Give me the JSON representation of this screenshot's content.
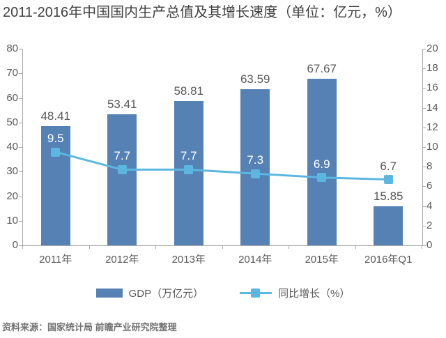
{
  "chart_data": {
    "type": "combo",
    "title": "2011-2016年中国国内生产总值及其增长速度（单位：亿元，%）",
    "categories": [
      "2011年",
      "2012年",
      "2013年",
      "2014年",
      "2015年",
      "2016年Q1"
    ],
    "series": [
      {
        "name": "GDP（万亿元）",
        "type": "bar",
        "axis": "left",
        "values": [
          48.41,
          53.41,
          58.81,
          63.59,
          67.67,
          15.85
        ]
      },
      {
        "name": "同比增长（%）",
        "type": "line",
        "axis": "right",
        "values": [
          9.5,
          7.7,
          7.7,
          7.3,
          6.9,
          6.7
        ]
      }
    ],
    "left_axis": {
      "min": 0,
      "max": 80,
      "ticks": [
        0,
        10,
        20,
        30,
        40,
        50,
        60,
        70,
        80
      ]
    },
    "right_axis": {
      "min": 0,
      "max": 20,
      "ticks": [
        0,
        2,
        4,
        6,
        8,
        10,
        12,
        14,
        16,
        18,
        20
      ]
    },
    "grid": false,
    "legend_position": "bottom",
    "data_labels": true
  },
  "source": "资料来源：国家统计局 前瞻产业研究院整理",
  "colors": {
    "bar": "#5581B5",
    "line": "#5BB7E0",
    "axis_line": "#A9A9A9",
    "text": "#595959",
    "title_text": "#3F3F3F",
    "source_text": "#737373",
    "label_on_bar": "#FFFFFF"
  }
}
